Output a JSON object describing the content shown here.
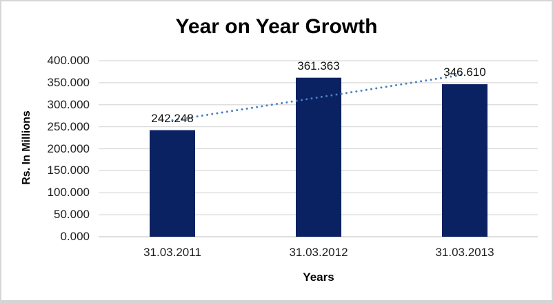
{
  "chart_data": {
    "type": "bar",
    "title": "Year on Year Growth",
    "xlabel": "Years",
    "ylabel": "Rs. In Millions",
    "categories": [
      "31.03.2011",
      "31.03.2012",
      "31.03.2013"
    ],
    "values": [
      242.248,
      361.363,
      346.61
    ],
    "data_labels": [
      "242.248",
      "361.363",
      "346.610"
    ],
    "ylim": [
      0,
      400
    ],
    "ytick_step": 50,
    "ytick_labels": [
      "0.000",
      "50.000",
      "100.000",
      "150.000",
      "200.000",
      "250.000",
      "300.000",
      "350.000",
      "400.000"
    ],
    "grid": true,
    "legend": false,
    "trendline": {
      "type": "linear",
      "style": "dotted"
    },
    "colors": {
      "bar": "#0A2162",
      "trendline": "#4A80C2",
      "gridline": "#D9D9D9",
      "baseline": "#C9C9C9",
      "text": "#1F1F1F"
    }
  }
}
